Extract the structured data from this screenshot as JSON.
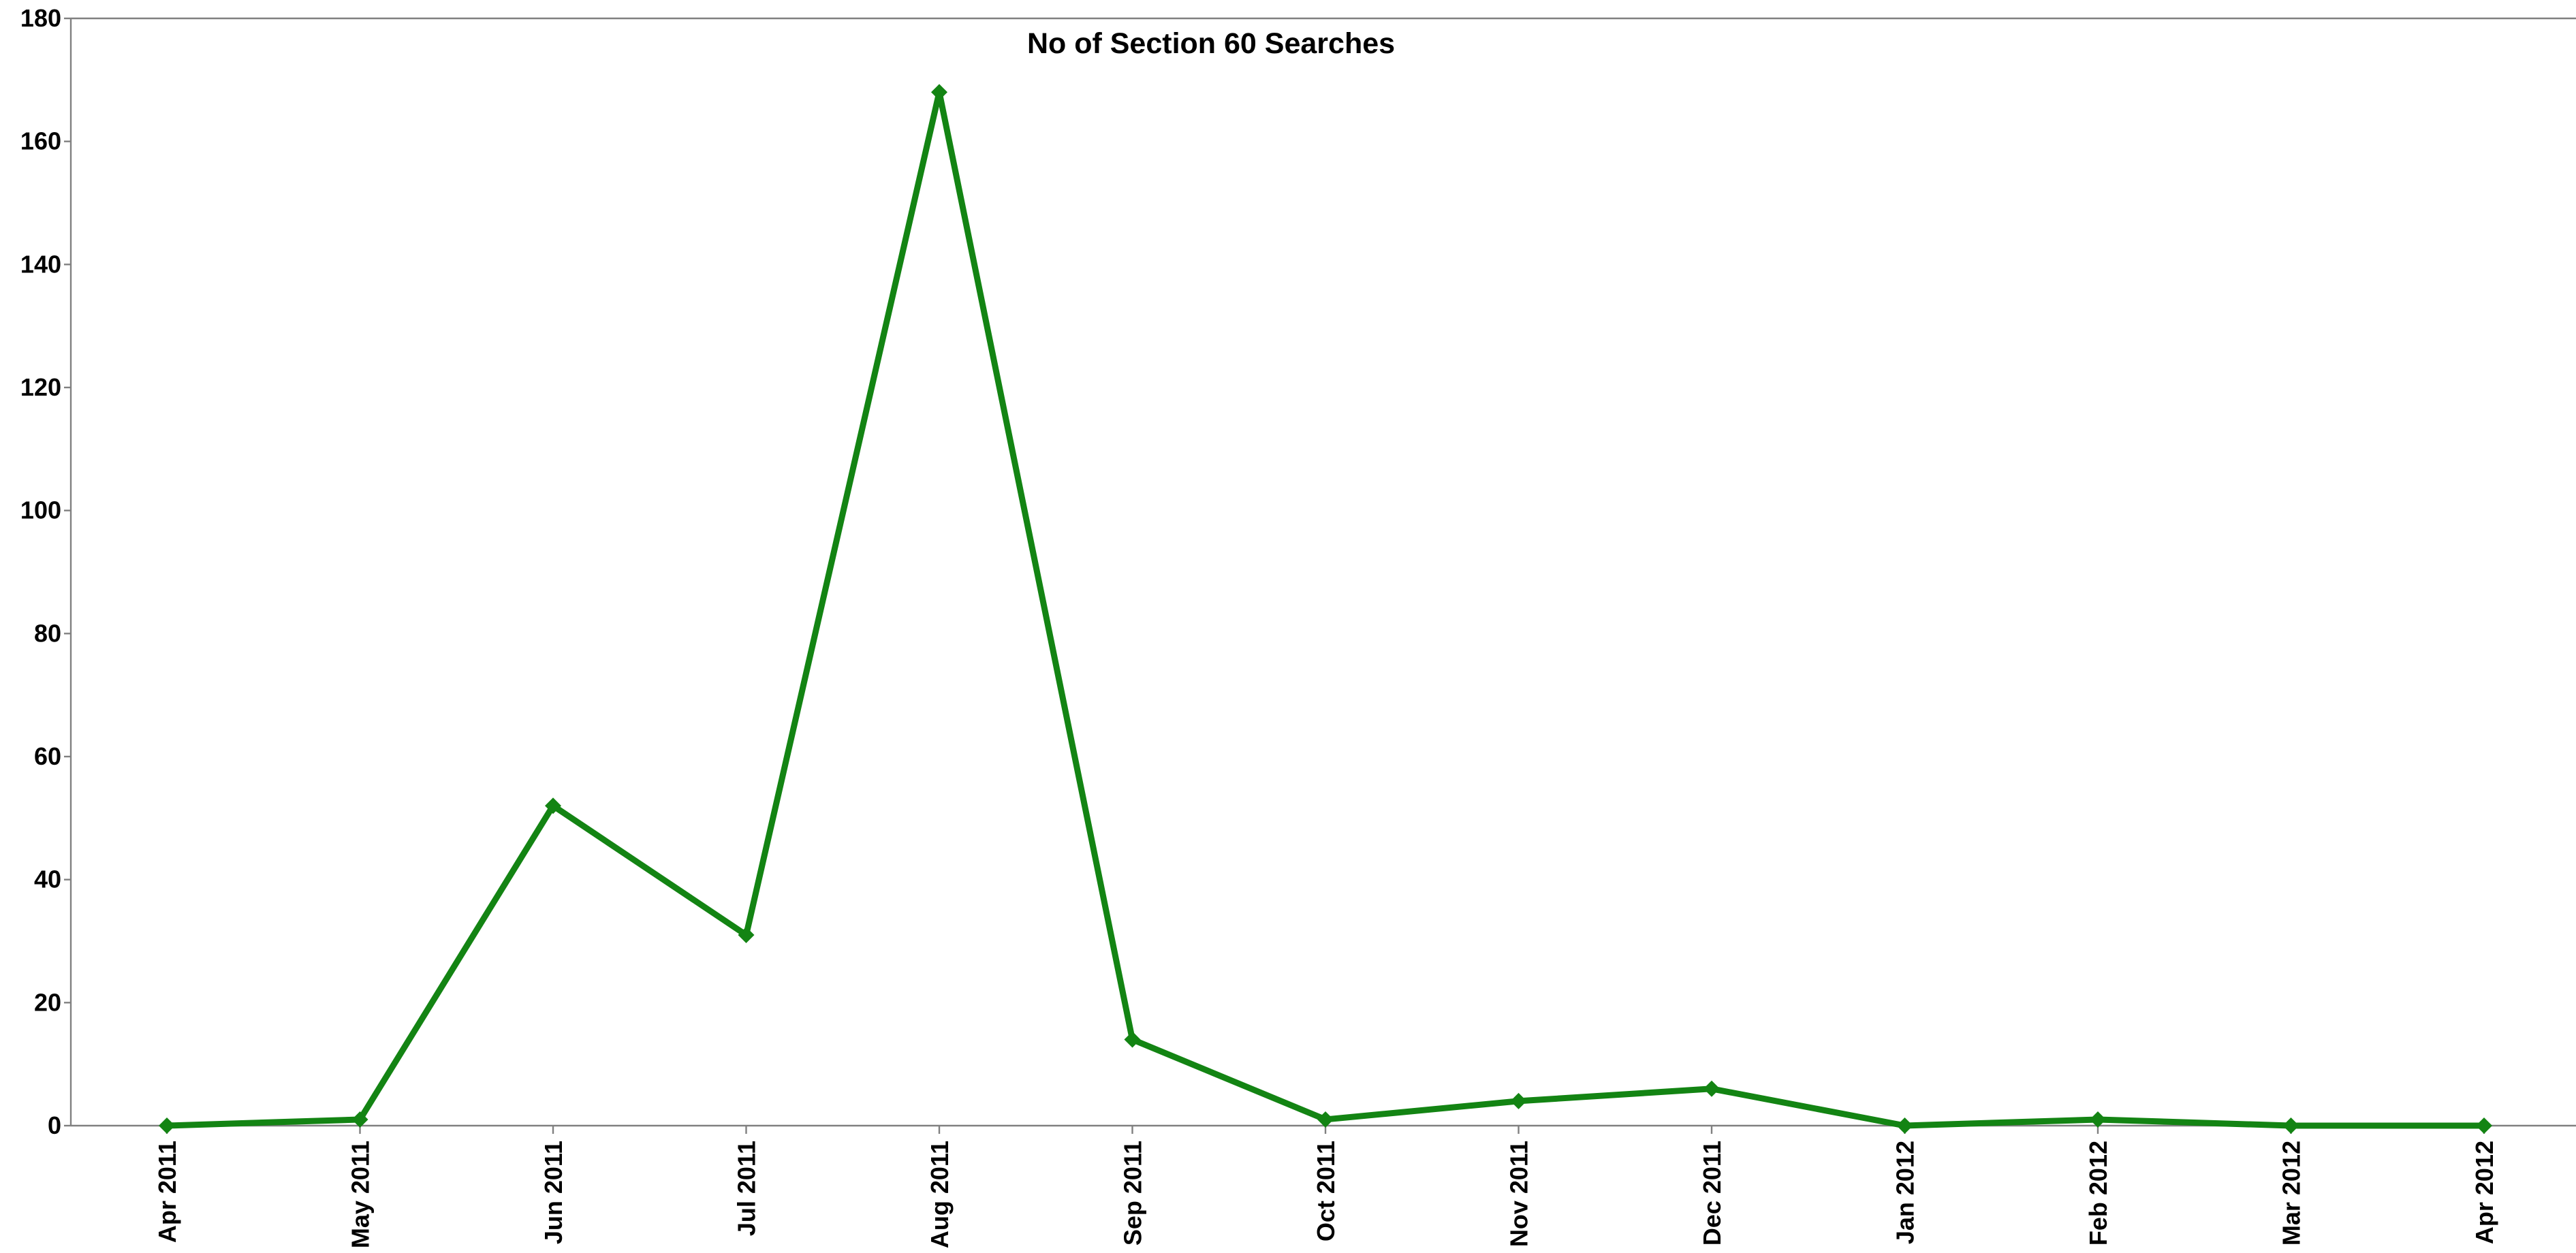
{
  "chart_data": {
    "type": "line",
    "title": "No of Section 60 Searches",
    "xlabel": "",
    "ylabel": "",
    "categories": [
      "Apr 2011",
      "May 2011",
      "Jun 2011",
      "Jul 2011",
      "Aug 2011",
      "Sep 2011",
      "Oct 2011",
      "Nov 2011",
      "Dec 2011",
      "Jan 2012",
      "Feb 2012",
      "Mar 2012",
      "Apr 2012"
    ],
    "series": [
      {
        "values": [
          0,
          1,
          52,
          31,
          168,
          14,
          1,
          4,
          6,
          0,
          1,
          0,
          0
        ],
        "color": "#138413",
        "marker": "diamond"
      }
    ],
    "ylim": [
      0,
      180
    ],
    "yticks": [
      0,
      20,
      40,
      60,
      80,
      100,
      120,
      140,
      160,
      180
    ],
    "grid": false,
    "legend": "none"
  }
}
